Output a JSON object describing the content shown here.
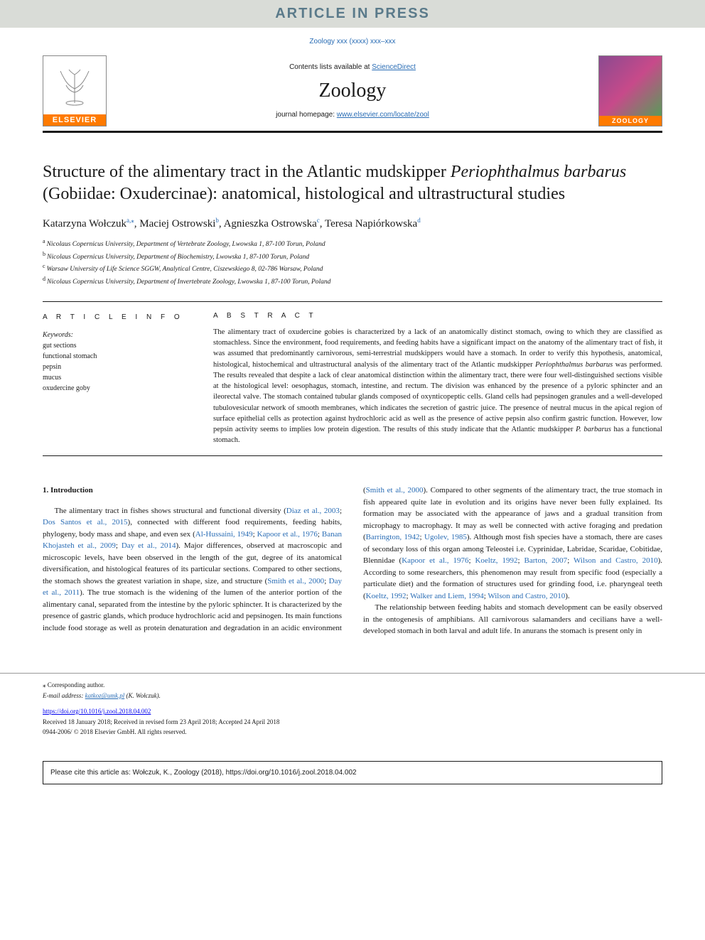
{
  "banner": "ARTICLE IN PRESS",
  "running_cite": "Zoology xxx (xxxx) xxx–xxx",
  "header": {
    "contents_prefix": "Contents lists available at ",
    "contents_link": "ScienceDirect",
    "journal": "Zoology",
    "homepage_prefix": "journal homepage: ",
    "homepage_link": "www.elsevier.com/locate/zool",
    "publisher": "ELSEVIER",
    "cover_label": "ZOOLOGY"
  },
  "title_parts": {
    "before": "Structure of the alimentary tract in the Atlantic mudskipper ",
    "italic": "Periophthalmus barbarus",
    "after": " (Gobiidae: Oxudercinae): anatomical, histological and ultrastructural studies"
  },
  "authors": [
    {
      "name": "Katarzyna Wołczuk",
      "sup": "a,⁎"
    },
    {
      "name": "Maciej Ostrowski",
      "sup": "b"
    },
    {
      "name": "Agnieszka Ostrowska",
      "sup": "c"
    },
    {
      "name": "Teresa Napiórkowska",
      "sup": "d"
    }
  ],
  "affiliations": [
    {
      "key": "a",
      "text": "Nicolaus Copernicus University, Department of Vertebrate Zoology, Lwowska 1, 87-100 Torun, Poland"
    },
    {
      "key": "b",
      "text": "Nicolaus Copernicus University, Department of Biochemistry, Lwowska 1, 87-100 Torun, Poland"
    },
    {
      "key": "c",
      "text": "Warsaw University of Life Science SGGW, Analytical Centre, Ciszewskiego 8, 02-786 Warsaw, Poland"
    },
    {
      "key": "d",
      "text": "Nicolaus Copernicus University, Department of Invertebrate Zoology, Lwowska 1, 87-100 Torun, Poland"
    }
  ],
  "info_heading": "A R T I C L E  I N F O",
  "keywords_label": "Keywords:",
  "keywords": [
    "gut sections",
    "functional stomach",
    "pepsin",
    "mucus",
    "oxudercine goby"
  ],
  "abstract_heading": "A B S T R A C T",
  "abstract": {
    "p1_before": "The alimentary tract of oxudercine gobies is characterized by a lack of an anatomically distinct stomach, owing to which they are classified as stomachless. Since the environment, food requirements, and feeding habits have a significant impact on the anatomy of the alimentary tract of fish, it was assumed that predominantly carnivorous, semi-terrestrial mudskippers would have a stomach. In order to verify this hypothesis, anatomical, histological, histochemical and ultrastructural analysis of the alimentary tract of the Atlantic mudskipper ",
    "p1_italic": "Periophthalmus barbarus",
    "p1_after": " was performed. The results revealed that despite a lack of clear anatomical distinction within the alimentary tract, there were four well-distinguished sections visible at the histological level: oesophagus, stomach, intestine, and rectum. The division was enhanced by the presence of a pyloric sphincter and an ileorectal valve. The stomach contained tubular glands composed of oxynticopeptic cells. Gland cells had pepsinogen granules and a well-developed tubulovesicular network of smooth membranes, which indicates the secretion of gastric juice. The presence of neutral mucus in the apical region of surface epithelial cells as protection against hydrochloric acid as well as the presence of active pepsin also confirm gastric function. However, low pepsin activity seems to implies low protein digestion. The results of this study indicate that the Atlantic mudskipper ",
    "p1_italic2": "P. barbarus",
    "p1_after2": " has a functional stomach."
  },
  "section1_heading": "1. Introduction",
  "intro": {
    "p1a": "The alimentary tract in fishes shows structural and functional diversity (",
    "r1": "Diaz et al., 2003",
    "p1b": "; ",
    "r2": "Dos Santos et al., 2015",
    "p1c": "), connected with different food requirements, feeding habits, phylogeny, body mass and shape, and even sex (",
    "r3": "Al-Hussaini, 1949",
    "p1d": "; ",
    "r4": "Kapoor et al., 1976",
    "p1e": "; ",
    "r5": "Banan Khojasteh et al., 2009",
    "p1f": "; ",
    "r6": "Day et al., 2014",
    "p1g": "). Major differences, observed at macroscopic and microscopic levels, have been observed in the length of the gut, degree of its anatomical diversification, and histological features of its particular sections. Compared to other sections, the stomach shows the greatest variation in shape, size, and structure (",
    "r7": "Smith et al., 2000",
    "p1h": "; ",
    "r8": "Day et al., 2011",
    "p1i": "). The true stomach is the widening of the lumen of the anterior portion of the alimentary canal, separated from the intestine by the pyloric sphincter. It is characterized by the presence of gastric glands, which produce hydrochloric acid and pepsinogen. Its main functions include food storage as well as protein denaturation and degradation in an acidic environment (",
    "r9": "Smith et al., 2000",
    "p1j": "). Compared to other segments of the alimentary tract, the true stomach in fish appeared quite late in evolution and its origins have never been fully explained. Its formation may be associated with the appearance of jaws and a gradual transition from microphagy to macrophagy. It may as well be connected with active foraging and predation (",
    "r10": "Barrington, 1942",
    "p1k": "; ",
    "r11": "Ugolev, 1985",
    "p1l": "). Although most fish species have a stomach, there are cases of secondary loss of this organ among Teleostei i.e. Cyprinidae, Labridae, Scaridae, Cobitidae, Blennidae (",
    "r12": "Kapoor et al., 1976",
    "p1m": "; ",
    "r13": "Koeltz, 1992",
    "p1n": "; ",
    "r14": "Barton, 2007",
    "p1o": "; ",
    "r15": "Wilson and Castro, 2010",
    "p1p": "). According to some researchers, this phenomenon may result from specific food (especially a particulate diet) and the formation of structures used for grinding food, i.e. pharyngeal teeth (",
    "r16": "Koeltz, 1992",
    "p1q": "; ",
    "r17": "Walker and Liem, 1994",
    "p1r": "; ",
    "r18": "Wilson and Castro, 2010",
    "p1s": ").",
    "p2": "The relationship between feeding habits and stomach development can be easily observed in the ontogenesis of amphibians. All carnivorous salamanders and cecilians have a well-developed stomach in both larval and adult life. In anurans the stomach is present only in"
  },
  "footer": {
    "corresponding": "⁎ Corresponding author.",
    "email_label": "E-mail address: ",
    "email": "katkoz@umk.pl",
    "email_suffix": " (K. Wołczuk).",
    "doi": "https://doi.org/10.1016/j.zool.2018.04.002",
    "received": "Received 18 January 2018; Received in revised form 23 April 2018; Accepted 24 April 2018",
    "copyright": "0944-2006/ © 2018 Elsevier GmbH. All rights reserved."
  },
  "cite_box": "Please cite this article as: Wołczuk, K., Zoology (2018), https://doi.org/10.1016/j.zool.2018.04.002",
  "colors": {
    "banner_bg": "#d9dcd7",
    "banner_fg": "#5a7a8a",
    "link": "#2a6db5",
    "orange": "#ff7a00",
    "rule": "#1a1a1a"
  },
  "typography": {
    "title_pt": 24,
    "journal_pt": 28,
    "body_pt": 11,
    "abstract_pt": 10.5,
    "small_pt": 10,
    "footer_pt": 9
  }
}
